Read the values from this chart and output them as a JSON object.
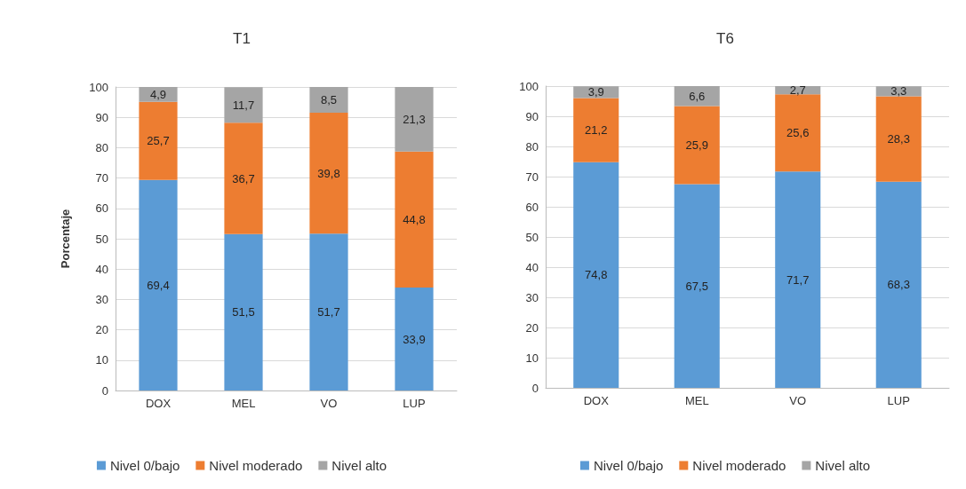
{
  "chart_data": [
    {
      "type": "bar",
      "title": "T1",
      "ylabel": "Porcentaje",
      "categories": [
        "DOX",
        "MEL",
        "VO",
        "LUP"
      ],
      "stacked": true,
      "ylim": [
        0,
        100
      ],
      "yticks": [
        0,
        10,
        20,
        30,
        40,
        50,
        60,
        70,
        80,
        90,
        100
      ],
      "grid": "y",
      "legend": "bottom",
      "series": [
        {
          "name": "Nivel 0/bajo",
          "color": "#5b9bd5",
          "values": [
            69.4,
            51.5,
            51.7,
            33.9
          ],
          "value_labels": [
            "69,4",
            "51,5",
            "51,7",
            "33,9"
          ]
        },
        {
          "name": "Nivel moderado",
          "color": "#ed7d31",
          "values": [
            25.7,
            36.7,
            39.8,
            44.8
          ],
          "value_labels": [
            "25,7",
            "36,7",
            "39,8",
            "44,8"
          ]
        },
        {
          "name": "Nivel alto",
          "color": "#a5a5a5",
          "values": [
            4.9,
            11.7,
            8.5,
            21.3
          ],
          "value_labels": [
            "4,9",
            "11,7",
            "8,5",
            "21,3"
          ]
        }
      ]
    },
    {
      "type": "bar",
      "title": "T6",
      "categories": [
        "DOX",
        "MEL",
        "VO",
        "LUP"
      ],
      "stacked": true,
      "ylim": [
        0,
        100
      ],
      "yticks": [
        0,
        10,
        20,
        30,
        40,
        50,
        60,
        70,
        80,
        90,
        100
      ],
      "grid": "y",
      "legend": "bottom",
      "series": [
        {
          "name": "Nivel 0/bajo",
          "color": "#5b9bd5",
          "values": [
            74.8,
            67.5,
            71.7,
            68.3
          ],
          "value_labels": [
            "74,8",
            "67,5",
            "71,7",
            "68,3"
          ]
        },
        {
          "name": "Nivel moderado",
          "color": "#ed7d31",
          "values": [
            21.2,
            25.9,
            25.6,
            28.3
          ],
          "value_labels": [
            "21,2",
            "25,9",
            "25,6",
            "28,3"
          ]
        },
        {
          "name": "Nivel alto",
          "color": "#a5a5a5",
          "values": [
            3.9,
            6.6,
            2.7,
            3.3
          ],
          "value_labels": [
            "3,9",
            "6,6",
            "2,7",
            "3,3"
          ]
        }
      ]
    }
  ]
}
